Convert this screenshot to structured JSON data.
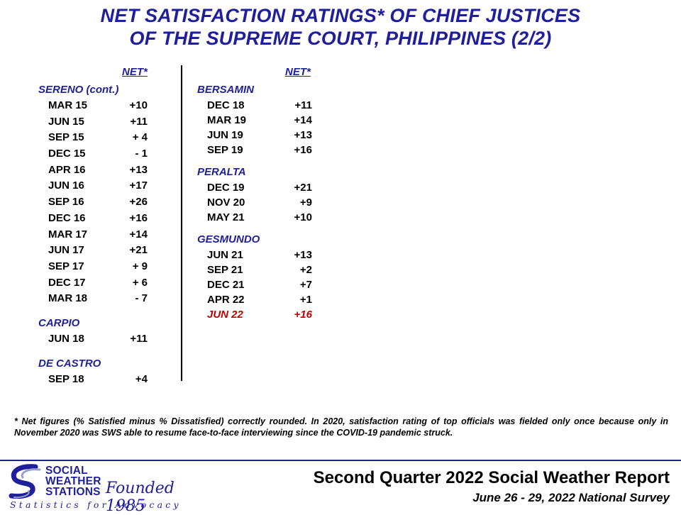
{
  "title": {
    "line1": "NET SATISFACTION  RATINGS* OF CHIEF JUSTICES",
    "line2": "OF THE SUPREME COURT, PHILIPPINES  (2/2)"
  },
  "net_header": "NET*",
  "left_groups": [
    {
      "name": "SERENO (cont.)",
      "rows": [
        {
          "label": "MAR 15",
          "value": "+10"
        },
        {
          "label": "JUN 15",
          "value": "+11"
        },
        {
          "label": "SEP 15",
          "value": "+ 4"
        },
        {
          "label": "DEC 15",
          "value": "- 1"
        },
        {
          "label": "APR 16",
          "value": "+13"
        },
        {
          "label": "JUN 16",
          "value": "+17"
        },
        {
          "label": "SEP 16",
          "value": "+26"
        },
        {
          "label": "DEC 16",
          "value": "+16"
        },
        {
          "label": "MAR 17",
          "value": "+14"
        },
        {
          "label": "JUN 17",
          "value": "+21"
        },
        {
          "label": "SEP 17",
          "value": "+ 9"
        },
        {
          "label": "DEC 17",
          "value": "+ 6"
        },
        {
          "label": "MAR 18",
          "value": "- 7"
        }
      ]
    },
    {
      "name": "CARPIO",
      "rows": [
        {
          "label": "JUN 18",
          "value": "+11"
        }
      ]
    },
    {
      "name": "DE CASTRO",
      "rows": [
        {
          "label": "SEP 18",
          "value": "+4"
        }
      ]
    }
  ],
  "right_groups": [
    {
      "name": "BERSAMIN",
      "rows": [
        {
          "label": "DEC 18",
          "value": "+11"
        },
        {
          "label": "MAR 19",
          "value": "+14"
        },
        {
          "label": "JUN 19",
          "value": "+13"
        },
        {
          "label": "SEP 19",
          "value": "+16"
        }
      ]
    },
    {
      "name": "PERALTA",
      "rows": [
        {
          "label": "DEC 19",
          "value": "+21"
        },
        {
          "label": "NOV 20",
          "value": "+9"
        },
        {
          "label": "MAY 21",
          "value": "+10"
        }
      ]
    },
    {
      "name": "GESMUNDO",
      "rows": [
        {
          "label": "JUN 21",
          "value": "+13"
        },
        {
          "label": "SEP 21",
          "value": "+2"
        },
        {
          "label": "DEC 21",
          "value": "+7"
        },
        {
          "label": "APR 22",
          "value": "+1"
        },
        {
          "label": "JUN 22",
          "value": "+16",
          "highlight": true
        }
      ]
    }
  ],
  "footnote": "* Net figures  (% Satisfied  minus  % Dissatisfied)  correctly rounded.  In 2020, satisfaction  rating  of top officials  was fielded  only once because  only in November  2020 was SWS able to resume face-to-face  interviewing  since the COVID-19 pandemic  struck.",
  "logo": {
    "line1": "SOCIAL",
    "line2": "WEATHER",
    "line3": "STATIONS",
    "founded": "Founded 1985",
    "tagline": "Statistics for Advocacy"
  },
  "report": {
    "title": "Second Quarter 2022 Social Weather Report",
    "subtitle": "June 26 - 29, 2022 National Survey"
  },
  "colors": {
    "accent": "#1f1f9c",
    "highlight": "#c00000"
  }
}
